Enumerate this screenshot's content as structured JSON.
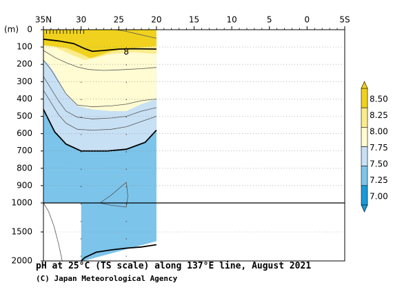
{
  "chart_data": {
    "type": "contour-section",
    "title": "pH at 25°C (TS scale) along 137°E line, August 2021",
    "credit": "(C) Japan Meteorological Agency",
    "x_axis": {
      "ticks": [
        {
          "value": 35,
          "label": "35N"
        },
        {
          "value": 30,
          "label": "30"
        },
        {
          "value": 25,
          "label": "25"
        },
        {
          "value": 20,
          "label": "20"
        },
        {
          "value": 15,
          "label": "15"
        },
        {
          "value": 10,
          "label": "10"
        },
        {
          "value": 5,
          "label": "5"
        },
        {
          "value": 0,
          "label": "0"
        },
        {
          "value": -5,
          "label": "5S"
        }
      ],
      "range": [
        35,
        -5
      ]
    },
    "y_axis": {
      "unit_label": "(m)",
      "ticks": [
        0,
        100,
        200,
        300,
        400,
        500,
        600,
        700,
        800,
        900,
        1000,
        1500,
        2000
      ],
      "upper_range": [
        0,
        1000
      ],
      "lower_range": [
        1000,
        2000
      ]
    },
    "colorbar": {
      "labels": [
        "8.50",
        "8.25",
        "8.00",
        "7.75",
        "7.50",
        "7.25",
        "7.00"
      ],
      "bins": [
        {
          "from": 8.25,
          "to": 8.5,
          "color": "#f0d21e"
        },
        {
          "from": 8.0,
          "to": 8.25,
          "color": "#faec8c"
        },
        {
          "from": 7.75,
          "to": 8.0,
          "color": "#fffbd2"
        },
        {
          "from": 7.5,
          "to": 7.75,
          "color": "#c8e0f4"
        },
        {
          "from": 7.25,
          "to": 7.5,
          "color": "#7cc4ea"
        },
        {
          "from": 7.0,
          "to": 7.25,
          "color": "#1a9ad6"
        }
      ]
    },
    "contour_labels": [
      {
        "text": "8",
        "lat": 24,
        "depth": 130
      }
    ],
    "stations_lat": [
      30,
      24
    ]
  }
}
